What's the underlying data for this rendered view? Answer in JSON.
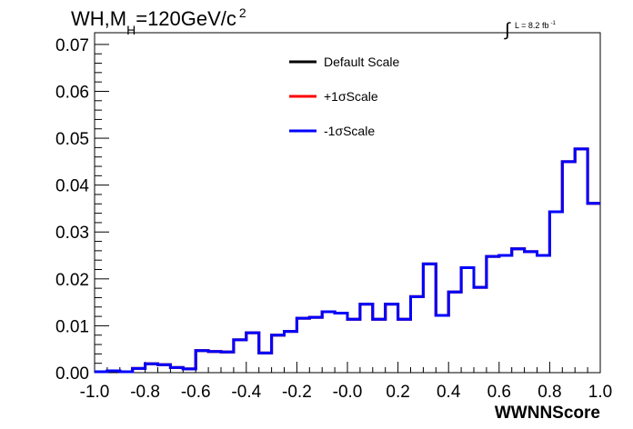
{
  "title": {
    "main": "WH,M",
    "sub": "H",
    "rest": "=120GeV/c",
    "sup": "2"
  },
  "luminosity": {
    "integral": "∫",
    "text": "L = 8.2 fb",
    "sup": "-1"
  },
  "chart_data": {
    "type": "histogram-step",
    "xlabel": "WWNNScore",
    "ylabel": "",
    "xlim": [
      -1.0,
      1.0
    ],
    "ylim": [
      0.0,
      0.0725
    ],
    "x_ticks": [
      "-1.0",
      "-0.8",
      "-0.6",
      "-0.4",
      "-0.2",
      "-0.0",
      "0.2",
      "0.4",
      "0.6",
      "0.8",
      "1.0"
    ],
    "y_ticks": [
      "0.00",
      "0.01",
      "0.02",
      "0.03",
      "0.04",
      "0.05",
      "0.06",
      "0.07"
    ],
    "x_tick_values": [
      -1.0,
      -0.8,
      -0.6,
      -0.4,
      -0.2,
      0.0,
      0.2,
      0.4,
      0.6,
      0.8,
      1.0
    ],
    "y_tick_values": [
      0.0,
      0.01,
      0.02,
      0.03,
      0.04,
      0.05,
      0.06,
      0.07
    ],
    "bin_edges": [
      -1.0,
      -0.95,
      -0.9,
      -0.85,
      -0.8,
      -0.75,
      -0.7,
      -0.65,
      -0.6,
      -0.55,
      -0.5,
      -0.45,
      -0.4,
      -0.35,
      -0.3,
      -0.25,
      -0.2,
      -0.15,
      -0.1,
      -0.05,
      0.0,
      0.05,
      0.1,
      0.15,
      0.2,
      0.25,
      0.3,
      0.35,
      0.4,
      0.45,
      0.5,
      0.55,
      0.6,
      0.65,
      0.7,
      0.75,
      0.8,
      0.85,
      0.9,
      0.95,
      1.0
    ],
    "series": [
      {
        "name": "Default Scale",
        "color": "#000000",
        "values": [
          0.0002,
          0.0004,
          0.0002,
          0.0009,
          0.0019,
          0.0017,
          0.0011,
          0.0008,
          0.0047,
          0.0045,
          0.0044,
          0.007,
          0.0085,
          0.0042,
          0.008,
          0.0088,
          0.0116,
          0.0118,
          0.013,
          0.0127,
          0.0114,
          0.0146,
          0.0114,
          0.0146,
          0.0114,
          0.0162,
          0.0232,
          0.0122,
          0.0172,
          0.0224,
          0.0182,
          0.0248,
          0.025,
          0.0264,
          0.0258,
          0.025,
          0.0343,
          0.045,
          0.0477,
          0.0361
        ]
      },
      {
        "name": "+1σScale",
        "color": "#ff0000",
        "values": [
          0.0002,
          0.0004,
          0.0002,
          0.0009,
          0.0019,
          0.0017,
          0.0011,
          0.0008,
          0.0047,
          0.0045,
          0.0044,
          0.007,
          0.0085,
          0.0042,
          0.008,
          0.0088,
          0.0116,
          0.0118,
          0.013,
          0.0127,
          0.0114,
          0.0146,
          0.0114,
          0.0146,
          0.0114,
          0.0162,
          0.0232,
          0.0122,
          0.0172,
          0.0224,
          0.0182,
          0.0248,
          0.025,
          0.0264,
          0.0258,
          0.025,
          0.0343,
          0.045,
          0.0477,
          0.0361
        ]
      },
      {
        "name": "-1σScale",
        "color": "#0000ff",
        "values": [
          0.0002,
          0.0004,
          0.0002,
          0.0009,
          0.0019,
          0.0017,
          0.0011,
          0.0008,
          0.0047,
          0.0045,
          0.0044,
          0.007,
          0.0085,
          0.0042,
          0.008,
          0.0088,
          0.0116,
          0.0118,
          0.013,
          0.0127,
          0.0114,
          0.0146,
          0.0114,
          0.0146,
          0.0114,
          0.0162,
          0.0232,
          0.0122,
          0.0172,
          0.0224,
          0.0182,
          0.0248,
          0.025,
          0.0264,
          0.0258,
          0.025,
          0.0343,
          0.045,
          0.0477,
          0.0361
        ]
      }
    ],
    "legend_position": "top-center"
  }
}
